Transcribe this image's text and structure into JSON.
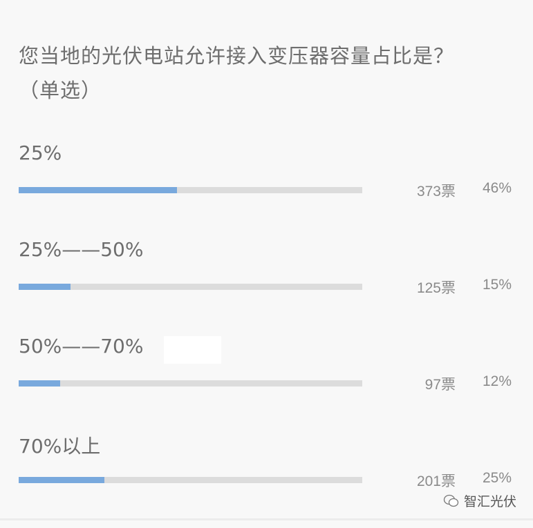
{
  "question": {
    "title": "您当地的光伏电站允许接入变压器容量占比是？（单选）"
  },
  "accent_color": "#79a9dd",
  "options": [
    {
      "label": "25%",
      "votes": "373票",
      "percent": "46%",
      "fraction": 0.46
    },
    {
      "label": "25%——50%",
      "votes": "125票",
      "percent": "15%",
      "fraction": 0.15
    },
    {
      "label": "50%——70%",
      "votes": "97票",
      "percent": "12%",
      "fraction": 0.12
    },
    {
      "label": "70%以上",
      "votes": "201票",
      "percent": "25%",
      "fraction": 0.25
    }
  ],
  "watermark": {
    "text": "智汇光伏",
    "icon": "wechat-icon"
  }
}
